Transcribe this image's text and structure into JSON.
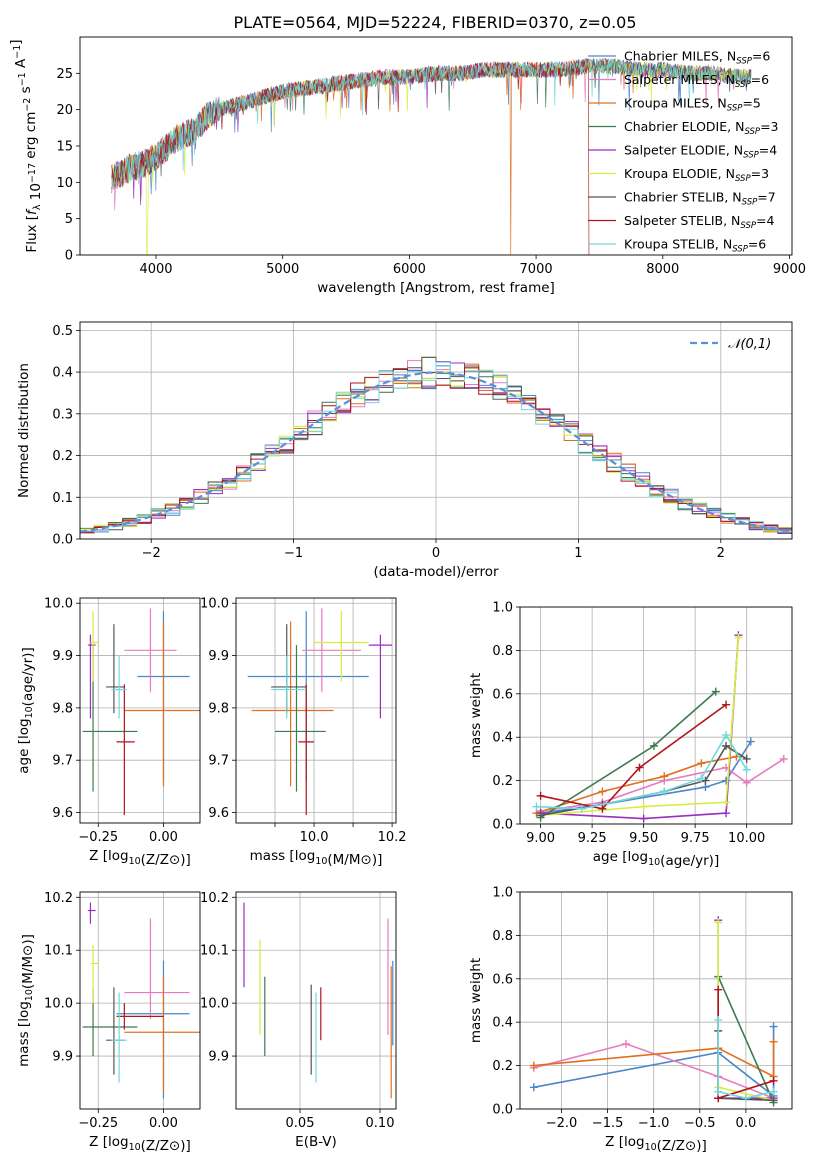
{
  "figure_title": "PLATE=0564, MJD=52224, FIBERID=0370, z=0.05",
  "colors": {
    "Chabrier MILES": "#4a86c8",
    "Salpeter MILES": "#e87ac0",
    "Kroupa MILES": "#e07020",
    "Chabrier ELODIE": "#3c7a50",
    "Salpeter ELODIE": "#9a2fc0",
    "Kroupa ELODIE": "#d8ec40",
    "Chabrier STELIB": "#555555",
    "Salpeter STELIB": "#b0141c",
    "Kroupa STELIB": "#70d8dc",
    "normal": "#5b8fd8"
  },
  "chart_data": [
    {
      "id": "spectrum",
      "type": "line",
      "xlabel": "wavelength [Angstrom, rest frame]",
      "ylabel": "Flux [f_λ 10^-17 erg cm^-2 s^-1 A^-1]",
      "xlim": [
        3400,
        9020
      ],
      "ylim": [
        0,
        30
      ],
      "xticks": [
        4000,
        5000,
        6000,
        7000,
        8000,
        9000
      ],
      "yticks": [
        0,
        5,
        10,
        15,
        20,
        25
      ],
      "legend_position": "top-right",
      "legend": [
        {
          "model": "Chabrier MILES",
          "n": "6"
        },
        {
          "model": "Salpeter MILES",
          "n": "6"
        },
        {
          "model": "Kroupa MILES",
          "n": "5"
        },
        {
          "model": "Chabrier ELODIE",
          "n": "3"
        },
        {
          "model": "Salpeter ELODIE",
          "n": "4"
        },
        {
          "model": "Kroupa ELODIE",
          "n": "3"
        },
        {
          "model": "Chabrier STELIB",
          "n": "7"
        },
        {
          "model": "Salpeter STELIB",
          "n": "4"
        },
        {
          "model": "Kroupa STELIB",
          "n": "6"
        }
      ],
      "continuum": {
        "x": [
          3650,
          3700,
          3800,
          3900,
          4000,
          4100,
          4200,
          4300,
          4400,
          4500,
          4600,
          4700,
          4800,
          4900,
          5000,
          5200,
          5400,
          5600,
          5800,
          6000,
          6200,
          6400,
          6600,
          6800,
          7000,
          7200,
          7400,
          7600,
          7800,
          8000,
          8200,
          8400,
          8600,
          8700
        ],
        "y": [
          10.5,
          11,
          12,
          12.5,
          13.5,
          15,
          16.5,
          17,
          19,
          20,
          20.5,
          21,
          21.5,
          22,
          22.5,
          23,
          23.5,
          24,
          24.5,
          24.5,
          25,
          25,
          25.5,
          25.5,
          25.5,
          25.5,
          26,
          26,
          25.5,
          25.5,
          25,
          25,
          24.5,
          24.5
        ]
      },
      "artifacts": [
        {
          "model": "Kroupa ELODIE",
          "x": 3930,
          "drop_to": 0
        },
        {
          "model": "Kroupa MILES",
          "x": 6800,
          "drop_to": 0
        },
        {
          "model": "Salpeter STELIB",
          "x": 7420,
          "drop_to": 0
        }
      ]
    },
    {
      "id": "residuals",
      "type": "line",
      "xlabel": "(data-model)/error",
      "ylabel": "Normed distribution",
      "xlim": [
        -2.5,
        2.5
      ],
      "ylim": [
        0,
        0.52
      ],
      "xticks": [
        -2,
        -1,
        0,
        1,
        2
      ],
      "yticks": [
        0.0,
        0.1,
        0.2,
        0.3,
        0.4,
        0.5
      ],
      "grid": true,
      "legend_position": "top-right",
      "legend": [
        {
          "label": "𝒩(0,1)",
          "style": "dashed"
        }
      ],
      "reference_curve": {
        "name": "𝒩(0,1)",
        "mean": 0,
        "sigma": 1
      }
    },
    {
      "id": "age-vs-Z",
      "type": "scatter",
      "xlabel": "Z [log10(Z/Z⊙)]",
      "ylabel": "age [log10(age/yr)]",
      "xlim": [
        -0.32,
        0.14
      ],
      "ylim": [
        9.58,
        10.01
      ],
      "xticks": [
        -0.25,
        0.0
      ],
      "xticklabels": [
        "−0.25",
        "0.00"
      ],
      "yticks": [
        9.6,
        9.7,
        9.8,
        9.9,
        10.0
      ],
      "grid": true,
      "points": [
        {
          "model": "Chabrier MILES",
          "x": 0.0,
          "xlo": -0.1,
          "xhi": 0.1,
          "y": 9.86,
          "ylo": 9.66,
          "yhi": 9.985
        },
        {
          "model": "Salpeter MILES",
          "x": -0.05,
          "xlo": -0.15,
          "xhi": 0.05,
          "y": 9.91,
          "ylo": 9.83,
          "yhi": 9.99
        },
        {
          "model": "Kroupa MILES",
          "x": 0.0,
          "xlo": -0.15,
          "xhi": 0.14,
          "y": 9.795,
          "ylo": 9.65,
          "yhi": 9.965
        },
        {
          "model": "Chabrier ELODIE",
          "x": -0.27,
          "xlo": -0.31,
          "xhi": -0.1,
          "y": 9.755,
          "ylo": 9.64,
          "yhi": 9.92
        },
        {
          "model": "Salpeter ELODIE",
          "x": -0.28,
          "xlo": -0.29,
          "xhi": -0.26,
          "y": 9.92,
          "ylo": 9.78,
          "yhi": 9.94
        },
        {
          "model": "Kroupa ELODIE",
          "x": -0.27,
          "xlo": -0.28,
          "xhi": -0.25,
          "y": 9.925,
          "ylo": 9.85,
          "yhi": 9.985
        },
        {
          "model": "Chabrier STELIB",
          "x": -0.19,
          "xlo": -0.22,
          "xhi": -0.15,
          "y": 9.84,
          "ylo": 9.79,
          "yhi": 9.96
        },
        {
          "model": "Salpeter STELIB",
          "x": -0.15,
          "xlo": -0.18,
          "xhi": -0.11,
          "y": 9.735,
          "ylo": 9.595,
          "yhi": 9.845
        },
        {
          "model": "Kroupa STELIB",
          "x": -0.17,
          "xlo": -0.2,
          "xhi": -0.14,
          "y": 9.835,
          "ylo": 9.78,
          "yhi": 9.9
        }
      ]
    },
    {
      "id": "age-vs-mass",
      "type": "scatter",
      "xlabel": "mass [log10(M/M⊙)]",
      "xlim": [
        9.8,
        10.21
      ],
      "ylim": [
        9.58,
        10.01
      ],
      "xticks": [
        9.9,
        10.0,
        10.1,
        10.2
      ],
      "xticklabels": [
        "",
        "10.0",
        "",
        "10.2"
      ],
      "yticks": [
        9.6,
        9.7,
        9.8,
        9.9,
        10.0
      ],
      "grid": true,
      "points": [
        {
          "model": "Chabrier MILES",
          "x": 9.98,
          "xlo": 9.83,
          "xhi": 10.14,
          "y": 9.86,
          "ylo": 9.66,
          "yhi": 9.985
        },
        {
          "model": "Salpeter MILES",
          "x": 10.02,
          "xlo": 9.97,
          "xhi": 10.12,
          "y": 9.91,
          "ylo": 9.83,
          "yhi": 9.99
        },
        {
          "model": "Kroupa MILES",
          "x": 9.94,
          "xlo": 9.84,
          "xhi": 10.05,
          "y": 9.795,
          "ylo": 9.65,
          "yhi": 9.965
        },
        {
          "model": "Chabrier ELODIE",
          "x": 9.955,
          "xlo": 9.9,
          "xhi": 10.03,
          "y": 9.755,
          "ylo": 9.64,
          "yhi": 9.92
        },
        {
          "model": "Salpeter ELODIE",
          "x": 10.17,
          "xlo": 10.14,
          "xhi": 10.2,
          "y": 9.92,
          "ylo": 9.78,
          "yhi": 9.94
        },
        {
          "model": "Kroupa ELODIE",
          "x": 10.07,
          "xlo": 10.0,
          "xhi": 10.14,
          "y": 9.925,
          "ylo": 9.85,
          "yhi": 9.985
        },
        {
          "model": "Chabrier STELIB",
          "x": 9.93,
          "xlo": 9.89,
          "xhi": 9.98,
          "y": 9.84,
          "ylo": 9.79,
          "yhi": 9.96
        },
        {
          "model": "Salpeter STELIB",
          "x": 9.98,
          "xlo": 9.96,
          "xhi": 10.0,
          "y": 9.735,
          "ylo": 9.595,
          "yhi": 9.845
        },
        {
          "model": "Kroupa STELIB",
          "x": 9.93,
          "xlo": 9.89,
          "xhi": 9.98,
          "y": 9.835,
          "ylo": 9.78,
          "yhi": 9.9
        }
      ]
    },
    {
      "id": "mass-weight-vs-age",
      "type": "line",
      "xlabel": "age [log10(age/yr)]",
      "ylabel": "mass weight",
      "xlim": [
        8.9,
        10.22
      ],
      "ylim": [
        0,
        1
      ],
      "xticks": [
        9.0,
        9.25,
        9.5,
        9.75,
        10.0
      ],
      "yticks": [
        0.0,
        0.2,
        0.4,
        0.6,
        0.8,
        1.0
      ],
      "grid": true,
      "series": [
        {
          "model": "Chabrier MILES",
          "x": [
            9.0,
            9.3,
            9.8,
            9.9,
            10.02
          ],
          "y": [
            0.05,
            0.09,
            0.17,
            0.2,
            0.38
          ]
        },
        {
          "model": "Salpeter MILES",
          "x": [
            9.0,
            9.3,
            9.6,
            9.9,
            10.0,
            10.18
          ],
          "y": [
            0.06,
            0.1,
            0.2,
            0.26,
            0.19,
            0.3
          ]
        },
        {
          "model": "Kroupa MILES",
          "x": [
            8.98,
            9.3,
            9.6,
            9.78,
            9.95
          ],
          "y": [
            0.05,
            0.15,
            0.22,
            0.28,
            0.31
          ]
        },
        {
          "model": "Chabrier ELODIE",
          "x": [
            9.0,
            9.55,
            9.85
          ],
          "y": [
            0.03,
            0.36,
            0.61
          ]
        },
        {
          "model": "Salpeter ELODIE",
          "x": [
            9.0,
            9.5,
            9.9,
            9.96
          ],
          "y": [
            0.05,
            0.025,
            0.05,
            0.87
          ]
        },
        {
          "model": "Kroupa ELODIE",
          "x": [
            9.0,
            9.5,
            9.9,
            9.96
          ],
          "y": [
            0.04,
            0.08,
            0.1,
            0.86
          ]
        },
        {
          "model": "Chabrier STELIB",
          "x": [
            9.0,
            9.3,
            9.6,
            9.8,
            9.9,
            10.0
          ],
          "y": [
            0.04,
            0.09,
            0.15,
            0.2,
            0.36,
            0.3
          ]
        },
        {
          "model": "Salpeter STELIB",
          "x": [
            9.0,
            9.3,
            9.48,
            9.9
          ],
          "y": [
            0.13,
            0.07,
            0.26,
            0.55
          ]
        },
        {
          "model": "Kroupa STELIB",
          "x": [
            8.98,
            9.2,
            9.6,
            9.78,
            9.9,
            10.0
          ],
          "y": [
            0.08,
            0.07,
            0.15,
            0.21,
            0.41,
            0.25
          ]
        }
      ]
    },
    {
      "id": "mass-vs-Z",
      "type": "scatter",
      "xlabel": "Z [log10(Z/Z⊙)]",
      "ylabel": "mass [log10(M/M⊙)]",
      "xlim": [
        -0.32,
        0.14
      ],
      "ylim": [
        9.8,
        10.21
      ],
      "xticks": [
        -0.25,
        0.0
      ],
      "xticklabels": [
        "−0.25",
        "0.00"
      ],
      "yticks": [
        9.9,
        10.0,
        10.1,
        10.2
      ],
      "grid": true,
      "points": [
        {
          "model": "Chabrier MILES",
          "x": 0.0,
          "xlo": -0.18,
          "xhi": 0.1,
          "y": 9.98,
          "ylo": 9.82,
          "yhi": 10.08
        },
        {
          "model": "Salpeter MILES",
          "x": -0.05,
          "xlo": -0.15,
          "xhi": 0.1,
          "y": 10.02,
          "ylo": 9.97,
          "yhi": 10.16
        },
        {
          "model": "Kroupa MILES",
          "x": 0.0,
          "xlo": -0.15,
          "xhi": 0.14,
          "y": 9.945,
          "ylo": 9.83,
          "yhi": 10.05
        },
        {
          "model": "Chabrier ELODIE",
          "x": -0.27,
          "xlo": -0.31,
          "xhi": -0.1,
          "y": 9.955,
          "ylo": 9.9,
          "yhi": 10.03
        },
        {
          "model": "Salpeter ELODIE",
          "x": -0.28,
          "xlo": -0.29,
          "xhi": -0.26,
          "y": 10.175,
          "ylo": 10.15,
          "yhi": 10.19
        },
        {
          "model": "Kroupa ELODIE",
          "x": -0.27,
          "xlo": -0.28,
          "xhi": -0.25,
          "y": 10.075,
          "ylo": 10.0,
          "yhi": 10.11
        },
        {
          "model": "Chabrier STELIB",
          "x": -0.19,
          "xlo": -0.22,
          "xhi": -0.15,
          "y": 9.93,
          "ylo": 9.865,
          "yhi": 10.03
        },
        {
          "model": "Salpeter STELIB",
          "x": -0.15,
          "xlo": -0.18,
          "xhi": -0.0,
          "y": 9.975,
          "ylo": 9.95,
          "yhi": 10.0
        },
        {
          "model": "Kroupa STELIB",
          "x": -0.17,
          "xlo": -0.2,
          "xhi": -0.14,
          "y": 9.93,
          "ylo": 9.85,
          "yhi": 10.02
        }
      ]
    },
    {
      "id": "mass-vs-ebv",
      "type": "scatter",
      "xlabel": "E(B-V)",
      "xlim": [
        0.01,
        0.11
      ],
      "ylim": [
        9.8,
        10.21
      ],
      "xticks": [
        0.05,
        0.1
      ],
      "xticklabels": [
        "0.05",
        "0.10"
      ],
      "yticks": [
        9.9,
        10.0,
        10.1,
        10.2
      ],
      "grid": true,
      "points": [
        {
          "model": "Chabrier MILES",
          "x": 0.108,
          "y": 10.0,
          "ylo": 9.92,
          "yhi": 10.08
        },
        {
          "model": "Salpeter MILES",
          "x": 0.105,
          "y": 10.04,
          "ylo": 9.94,
          "yhi": 10.16
        },
        {
          "model": "Kroupa MILES",
          "x": 0.107,
          "y": 9.95,
          "ylo": 9.82,
          "yhi": 10.07
        },
        {
          "model": "Chabrier ELODIE",
          "x": 0.028,
          "y": 9.96,
          "ylo": 9.9,
          "yhi": 10.05
        },
        {
          "model": "Salpeter ELODIE",
          "x": 0.015,
          "y": 10.11,
          "ylo": 10.03,
          "yhi": 10.19
        },
        {
          "model": "Kroupa ELODIE",
          "x": 0.025,
          "y": 10.0,
          "ylo": 9.94,
          "yhi": 10.12
        },
        {
          "model": "Chabrier STELIB",
          "x": 0.057,
          "y": 9.95,
          "ylo": 9.865,
          "yhi": 10.035
        },
        {
          "model": "Salpeter STELIB",
          "x": 0.063,
          "y": 9.98,
          "ylo": 9.93,
          "yhi": 10.03
        },
        {
          "model": "Kroupa STELIB",
          "x": 0.06,
          "y": 9.94,
          "ylo": 9.85,
          "yhi": 10.02
        }
      ]
    },
    {
      "id": "mass-weight-vs-Z",
      "type": "line",
      "xlabel": "Z [log10(Z/Z⊙)]",
      "ylabel": "mass weight",
      "xlim": [
        -2.45,
        0.5
      ],
      "ylim": [
        0,
        1
      ],
      "xticks": [
        -2.0,
        -1.5,
        -1.0,
        -0.5,
        0.0
      ],
      "xticklabels": [
        "−2.0",
        "−1.5",
        "−1.0",
        "−0.5",
        "0.0"
      ],
      "yticks": [
        0.0,
        0.2,
        0.4,
        0.6,
        0.8,
        1.0
      ],
      "grid": true,
      "series": [
        {
          "model": "Chabrier MILES",
          "x": [
            -2.3,
            -0.3,
            0.3,
            0.3
          ],
          "y": [
            0.1,
            0.26,
            0.06,
            0.38
          ]
        },
        {
          "model": "Salpeter MILES",
          "x": [
            -2.3,
            -1.3,
            -0.3,
            0.3
          ],
          "y": [
            0.19,
            0.3,
            0.15,
            0.05
          ]
        },
        {
          "model": "Kroupa MILES",
          "x": [
            -2.3,
            -0.3,
            0.3,
            0.3
          ],
          "y": [
            0.2,
            0.28,
            0.15,
            0.31
          ]
        },
        {
          "model": "Chabrier ELODIE",
          "x": [
            -0.3,
            0.3
          ],
          "y": [
            0.61,
            0.03
          ]
        },
        {
          "model": "Salpeter ELODIE",
          "x": [
            -0.3,
            -0.3,
            0.3
          ],
          "y": [
            0.87,
            0.05,
            0.05
          ]
        },
        {
          "model": "Kroupa ELODIE",
          "x": [
            -0.3,
            -0.3,
            0.3
          ],
          "y": [
            0.86,
            0.1,
            0.04
          ]
        },
        {
          "model": "Chabrier STELIB",
          "x": [
            -0.3,
            -0.3,
            0.3
          ],
          "y": [
            0.36,
            0.05,
            0.04
          ]
        },
        {
          "model": "Salpeter STELIB",
          "x": [
            -0.3,
            -0.3,
            0.3
          ],
          "y": [
            0.55,
            0.05,
            0.13
          ]
        },
        {
          "model": "Kroupa STELIB",
          "x": [
            -0.3,
            -0.3,
            0.0,
            0.3
          ],
          "y": [
            0.41,
            0.08,
            0.05,
            0.08
          ]
        }
      ]
    }
  ]
}
